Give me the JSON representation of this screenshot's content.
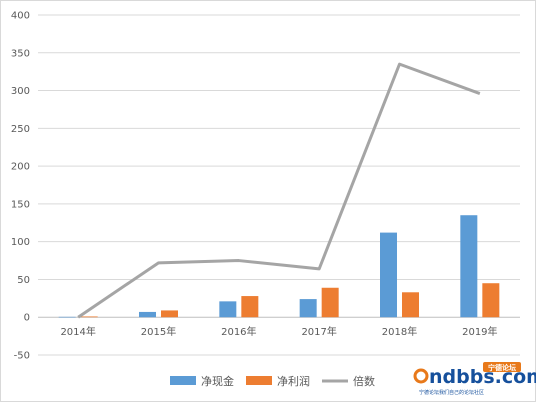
{
  "chart_data": {
    "type": "bar",
    "categories": [
      "2014年",
      "2015年",
      "2016年",
      "2017年",
      "2018年",
      "2019年"
    ],
    "series": [
      {
        "name": "净现金",
        "kind": "bar",
        "color": "#5b9bd5",
        "values": [
          0.5,
          7,
          21,
          24,
          112,
          135
        ]
      },
      {
        "name": "净利润",
        "kind": "bar",
        "color": "#ed7d31",
        "values": [
          1,
          9,
          28,
          39,
          33,
          45
        ]
      },
      {
        "name": "倍数",
        "kind": "line",
        "color": "#a5a5a5",
        "values": [
          0,
          72,
          75,
          64,
          335,
          296
        ]
      }
    ],
    "ylim": [
      -50,
      400
    ],
    "yticks": [
      -50,
      0,
      50,
      100,
      150,
      200,
      250,
      300,
      350,
      400
    ],
    "grid": true,
    "legend_position": "bottom",
    "title": "",
    "xlabel": "",
    "ylabel": ""
  },
  "watermark": {
    "site": "ndbbs.com",
    "badge": "宁德论坛",
    "tagline": "宁德论坛我们自己的论坛社区"
  }
}
